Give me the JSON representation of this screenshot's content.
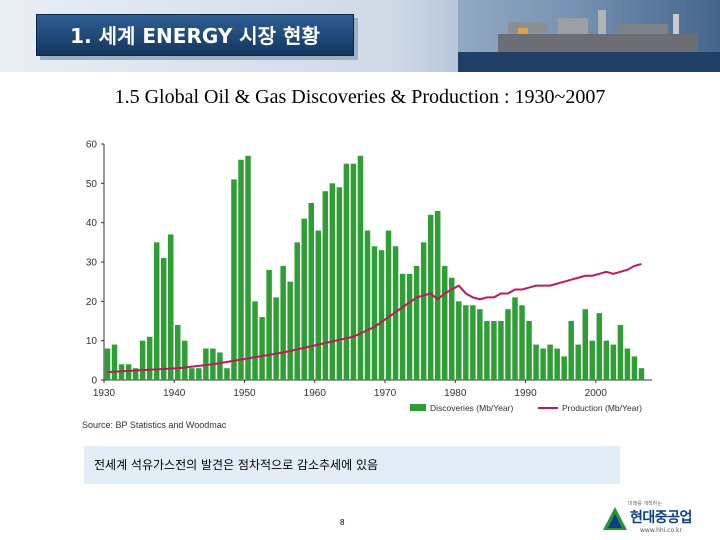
{
  "header": {
    "title": "1. 세계 ENERGY 시장 현황"
  },
  "slide": {
    "heading": "1.5  Global Oil & Gas Discoveries & Production : 1930~2007",
    "source": "Source: BP Statistics and Woodmac",
    "note": "전세계 석유가스전의 발견은 점차적으로 감소추세에 있음",
    "page_number": "8"
  },
  "logo": {
    "slogan": "미래를 개척하는",
    "name": "현대중공업",
    "url": "www.hhi.co.kr"
  },
  "colors": {
    "bar": "#2e9e35",
    "line": "#c2185b",
    "heading_box": "#1f4877"
  },
  "chart_data": {
    "type": "bar",
    "title": "",
    "xlabel": "",
    "ylabel": "",
    "xlim": [
      1930,
      2007
    ],
    "ylim": [
      0,
      60
    ],
    "yticks": [
      0,
      10,
      20,
      30,
      40,
      50,
      60
    ],
    "xticks": [
      1930,
      1940,
      1950,
      1960,
      1970,
      1980,
      1990,
      2000
    ],
    "grid": false,
    "legend": "bottom-right",
    "series": [
      {
        "name": "Discoveries (Mb/Year)",
        "type": "bar",
        "x": [
          1930,
          1931,
          1932,
          1933,
          1934,
          1935,
          1936,
          1937,
          1938,
          1939,
          1940,
          1941,
          1942,
          1943,
          1944,
          1945,
          1946,
          1947,
          1948,
          1949,
          1950,
          1951,
          1952,
          1953,
          1954,
          1955,
          1956,
          1957,
          1958,
          1959,
          1960,
          1961,
          1962,
          1963,
          1964,
          1965,
          1966,
          1967,
          1968,
          1969,
          1970,
          1971,
          1972,
          1973,
          1974,
          1975,
          1976,
          1977,
          1978,
          1979,
          1980,
          1981,
          1982,
          1983,
          1984,
          1985,
          1986,
          1987,
          1988,
          1989,
          1990,
          1991,
          1992,
          1993,
          1994,
          1995,
          1996,
          1997,
          1998,
          1999,
          2000,
          2001,
          2002,
          2003,
          2004,
          2005,
          2006
        ],
        "values": [
          8,
          9,
          4,
          4,
          3,
          10,
          11,
          35,
          31,
          37,
          14,
          10,
          3,
          3,
          8,
          8,
          7,
          3,
          51,
          56,
          57,
          20,
          16,
          28,
          21,
          29,
          25,
          35,
          41,
          45,
          38,
          48,
          50,
          49,
          55,
          55,
          57,
          38,
          34,
          33,
          38,
          34,
          27,
          27,
          29,
          35,
          42,
          43,
          29,
          26,
          20,
          19,
          19,
          18,
          15,
          15,
          15,
          18,
          21,
          19,
          15,
          9,
          8,
          9,
          8,
          6,
          15,
          9,
          18,
          10,
          17,
          10,
          9,
          14,
          8,
          6,
          3
        ]
      },
      {
        "name": "Production (Mb/Year)",
        "type": "line",
        "x": [
          1930,
          1935,
          1940,
          1945,
          1950,
          1955,
          1960,
          1965,
          1968,
          1970,
          1972,
          1974,
          1976,
          1977,
          1978,
          1979,
          1980,
          1981,
          1982,
          1983,
          1984,
          1985,
          1986,
          1987,
          1988,
          1989,
          1990,
          1991,
          1992,
          1993,
          1994,
          1995,
          1996,
          1997,
          1998,
          1999,
          2000,
          2001,
          2002,
          2003,
          2004,
          2005,
          2006
        ],
        "values": [
          2,
          2.5,
          3,
          4,
          5.5,
          7,
          9,
          11,
          13.5,
          16,
          18.5,
          21,
          22,
          20.5,
          22,
          23,
          24,
          22,
          21,
          20.5,
          21,
          21,
          22,
          22,
          23,
          23,
          23.5,
          24,
          24,
          24,
          24.5,
          25,
          25.5,
          26,
          26.5,
          26.5,
          27,
          27.5,
          27,
          27.5,
          28,
          29,
          29.5
        ]
      }
    ]
  }
}
